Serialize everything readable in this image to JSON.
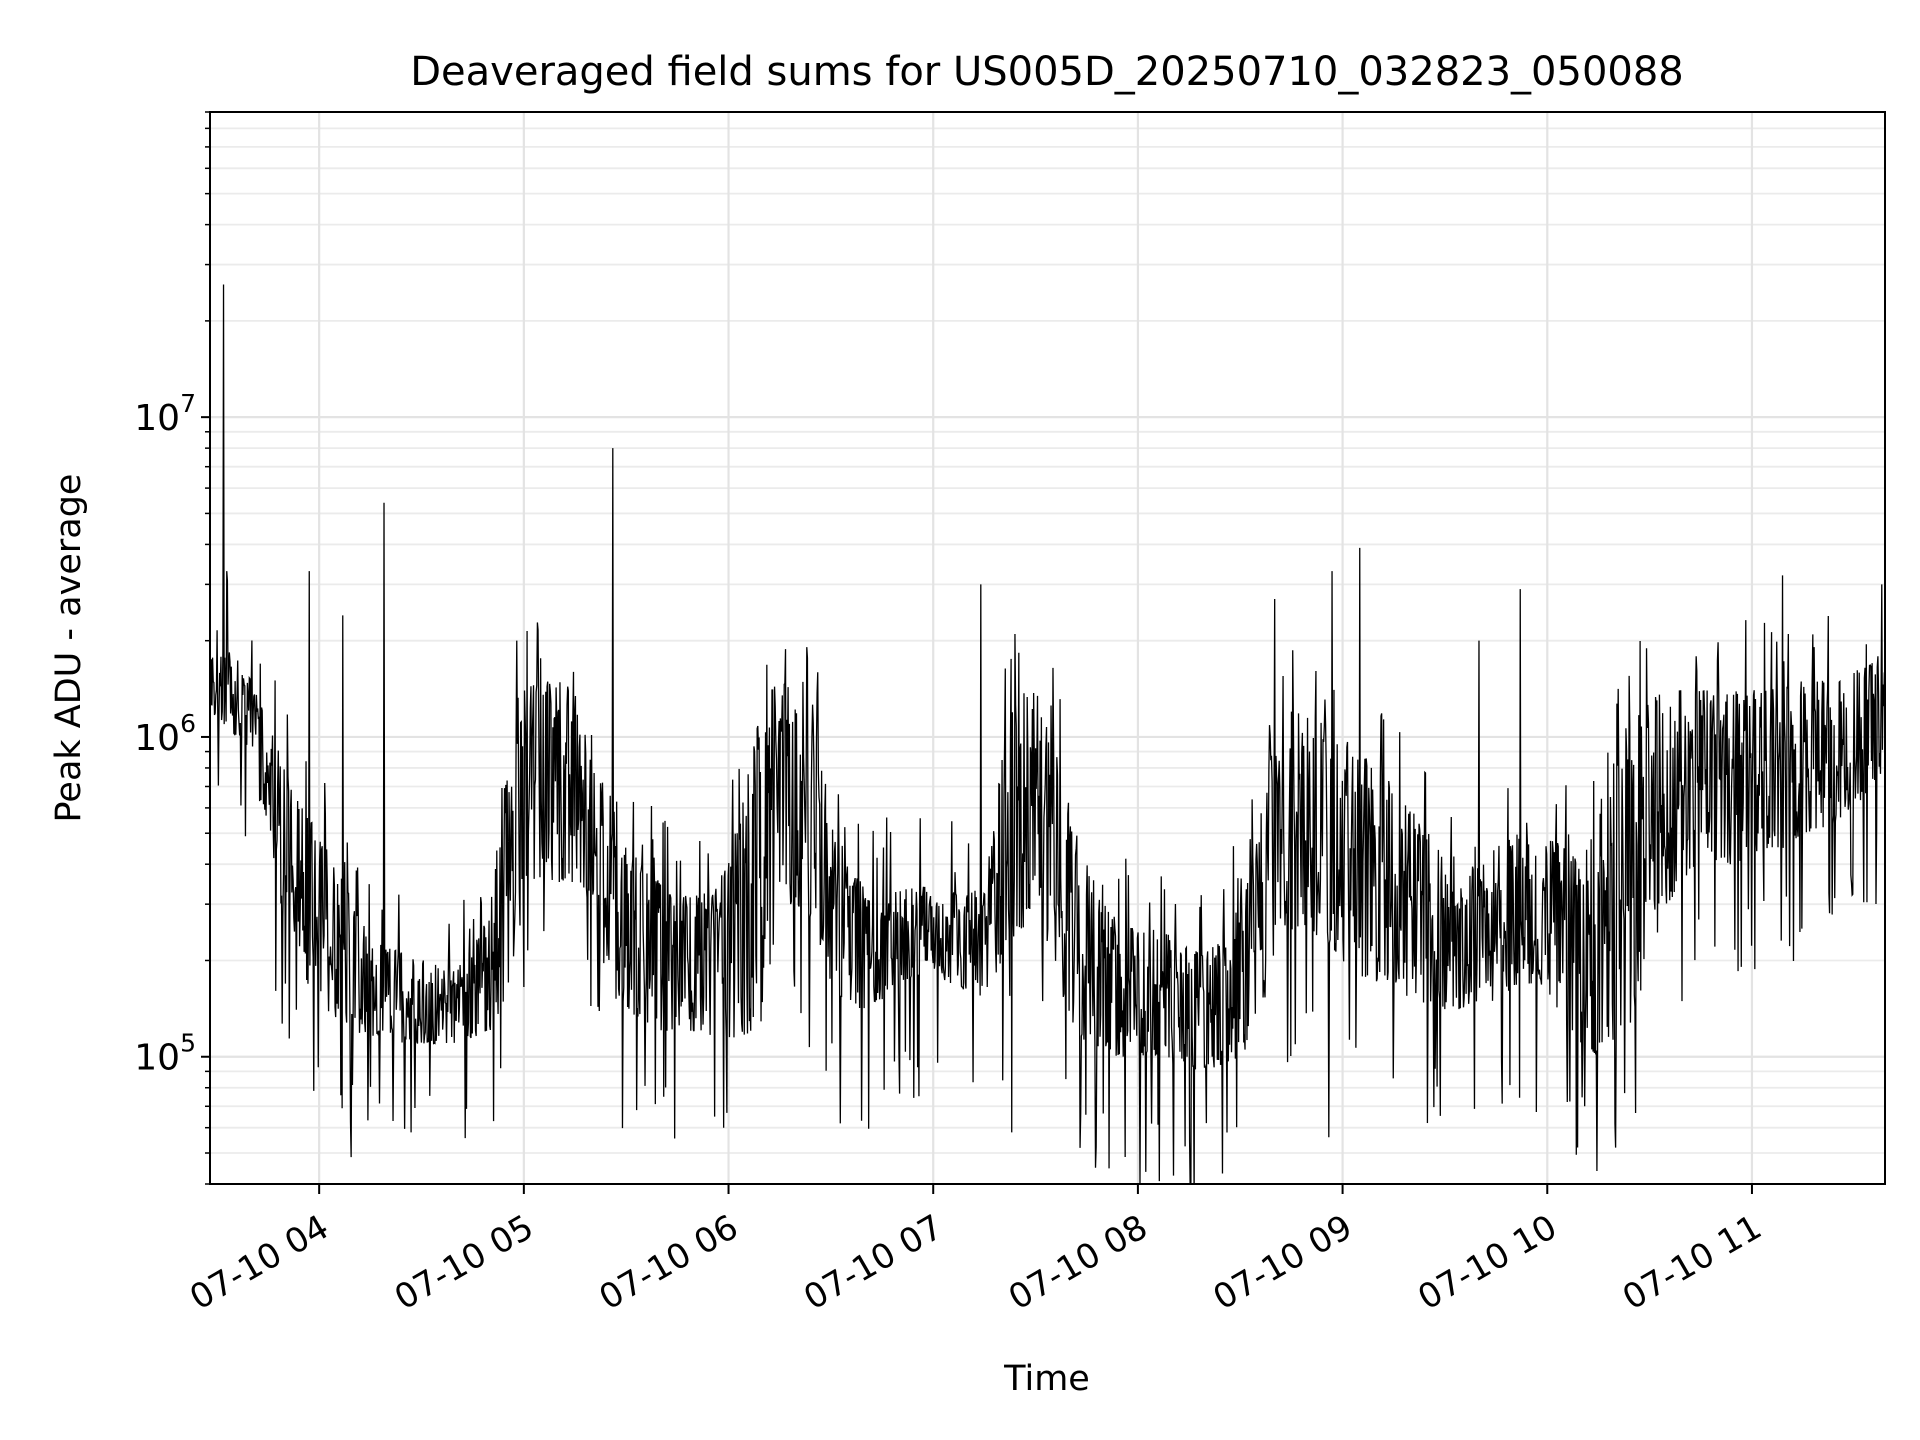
{
  "chart_data": {
    "type": "line",
    "title": "Deaveraged field sums for US005D_20250710_032823_050088",
    "xlabel": "Time",
    "ylabel": "Peak ADU - average",
    "yscale": "log",
    "ylim": [
      40000,
      90000000
    ],
    "xlim": [
      "07-10 03:28",
      "07-10 11:39"
    ],
    "grid": true,
    "line_color": "#000000",
    "x_ticks": [
      {
        "t": "07-10 04:00",
        "label": "07-10 04"
      },
      {
        "t": "07-10 05:00",
        "label": "07-10 05"
      },
      {
        "t": "07-10 06:00",
        "label": "07-10 06"
      },
      {
        "t": "07-10 07:00",
        "label": "07-10 07"
      },
      {
        "t": "07-10 08:00",
        "label": "07-10 08"
      },
      {
        "t": "07-10 09:00",
        "label": "07-10 09"
      },
      {
        "t": "07-10 10:00",
        "label": "07-10 10"
      },
      {
        "t": "07-10 11:00",
        "label": "07-10 11"
      }
    ],
    "y_ticks": [
      {
        "value": 100000,
        "base": "10",
        "exp": "5"
      },
      {
        "value": 1000000,
        "base": "10",
        "exp": "6"
      },
      {
        "value": 10000000,
        "base": "10",
        "exp": "7"
      }
    ],
    "envelope": {
      "t": [
        "03:28",
        "03:32",
        "03:36",
        "03:40",
        "03:45",
        "03:50",
        "03:55",
        "04:00",
        "04:05",
        "04:10",
        "04:15",
        "04:20",
        "04:25",
        "04:30",
        "04:35",
        "04:40",
        "04:45",
        "04:50",
        "04:55",
        "05:00",
        "05:05",
        "05:10",
        "05:15",
        "05:20",
        "05:25",
        "05:30",
        "05:35",
        "05:40",
        "05:45",
        "05:50",
        "05:55",
        "06:00",
        "06:05",
        "06:10",
        "06:15",
        "06:20",
        "06:25",
        "06:30",
        "06:35",
        "06:40",
        "06:45",
        "06:50",
        "06:55",
        "07:00",
        "07:05",
        "07:10",
        "07:15",
        "07:20",
        "07:25",
        "07:30",
        "07:35",
        "07:40",
        "07:45",
        "07:50",
        "07:55",
        "08:00",
        "08:05",
        "08:10",
        "08:15",
        "08:20",
        "08:25",
        "08:30",
        "08:35",
        "08:40",
        "08:45",
        "08:50",
        "08:55",
        "09:00",
        "09:05",
        "09:10",
        "09:15",
        "09:20",
        "09:25",
        "09:30",
        "09:35",
        "09:40",
        "09:45",
        "09:50",
        "09:55",
        "10:00",
        "10:05",
        "10:10",
        "10:15",
        "10:20",
        "10:25",
        "10:30",
        "10:35",
        "10:40",
        "10:45",
        "10:50",
        "10:55",
        "11:00",
        "11:05",
        "11:10",
        "11:15",
        "11:20",
        "11:25",
        "11:30",
        "11:35",
        "11:39"
      ],
      "low": [
        1200000,
        1100000,
        1000000,
        800000,
        500000,
        250000,
        180000,
        150000,
        130000,
        120000,
        115000,
        115000,
        110000,
        110000,
        110000,
        110000,
        115000,
        120000,
        150000,
        300000,
        350000,
        350000,
        350000,
        300000,
        160000,
        140000,
        130000,
        120000,
        120000,
        120000,
        115000,
        115000,
        115000,
        130000,
        300000,
        300000,
        250000,
        160000,
        140000,
        140000,
        150000,
        170000,
        180000,
        180000,
        170000,
        160000,
        150000,
        200000,
        250000,
        250000,
        200000,
        130000,
        110000,
        100000,
        100000,
        100000,
        100000,
        95000,
        90000,
        90000,
        95000,
        100000,
        120000,
        200000,
        250000,
        250000,
        220000,
        200000,
        180000,
        170000,
        160000,
        150000,
        145000,
        140000,
        140000,
        145000,
        150000,
        160000,
        170000,
        160000,
        130000,
        110000,
        100000,
        105000,
        130000,
        200000,
        300000,
        350000,
        400000,
        400000,
        400000,
        420000,
        450000,
        450000,
        500000,
        500000,
        550000,
        600000,
        700000,
        800000
      ],
      "high": [
        1800000,
        1900000,
        1800000,
        1500000,
        1100000,
        800000,
        600000,
        500000,
        400000,
        300000,
        250000,
        220000,
        210000,
        200000,
        200000,
        200000,
        220000,
        300000,
        800000,
        1400000,
        1500000,
        1500000,
        1400000,
        1100000,
        550000,
        450000,
        400000,
        350000,
        320000,
        320000,
        330000,
        400000,
        700000,
        1300000,
        1500000,
        1400000,
        1100000,
        600000,
        400000,
        350000,
        330000,
        330000,
        340000,
        340000,
        330000,
        320000,
        350000,
        900000,
        1400000,
        1400000,
        1000000,
        600000,
        400000,
        300000,
        260000,
        250000,
        250000,
        240000,
        220000,
        220000,
        240000,
        300000,
        500000,
        1000000,
        1200000,
        1200000,
        1100000,
        1000000,
        900000,
        800000,
        700000,
        600000,
        500000,
        450000,
        400000,
        400000,
        450000,
        500000,
        550000,
        500000,
        450000,
        400000,
        600000,
        900000,
        1200000,
        1300000,
        1400000,
        1400000,
        1400000,
        1400000,
        1400000,
        1400000,
        1400000,
        1450000,
        1500000,
        1500000,
        1500000,
        1600000,
        1700000,
        1900000
      ],
      "noise_points": 2600
    },
    "spikes": [
      {
        "t": "03:32",
        "value": 26000000
      },
      {
        "t": "03:33",
        "value": 3300000
      },
      {
        "t": "03:57",
        "value": 3300000
      },
      {
        "t": "04:07",
        "value": 2400000
      },
      {
        "t": "04:19",
        "value": 5400000
      },
      {
        "t": "04:58",
        "value": 2000000
      },
      {
        "t": "05:26",
        "value": 8000000
      },
      {
        "t": "07:14",
        "value": 3000000
      },
      {
        "t": "08:40",
        "value": 2700000
      },
      {
        "t": "08:57",
        "value": 3300000
      },
      {
        "t": "09:05",
        "value": 3900000
      },
      {
        "t": "09:40",
        "value": 2000000
      },
      {
        "t": "09:52",
        "value": 2900000
      },
      {
        "t": "11:09",
        "value": 3200000
      },
      {
        "t": "11:38",
        "value": 3000000
      }
    ],
    "dips": [
      {
        "t": "04:27",
        "value": 58000
      },
      {
        "t": "05:41",
        "value": 75000
      },
      {
        "t": "05:56",
        "value": 65000
      },
      {
        "t": "07:23",
        "value": 58000
      },
      {
        "t": "08:20",
        "value": 62000
      },
      {
        "t": "08:56",
        "value": 56000
      },
      {
        "t": "10:20",
        "value": 52000
      },
      {
        "t": "10:11",
        "value": 70000
      }
    ]
  }
}
